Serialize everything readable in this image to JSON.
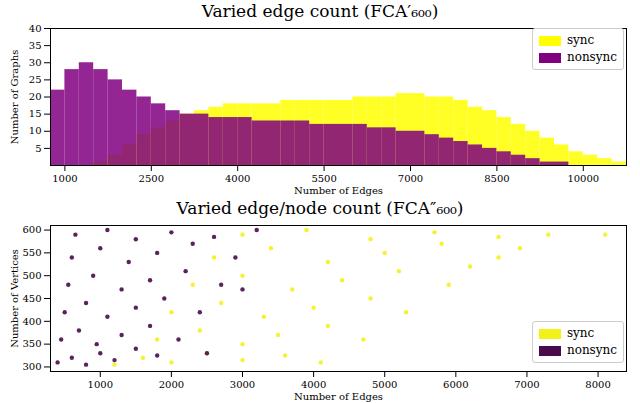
{
  "chart_data": [
    {
      "type": "histogram",
      "title": "Varied edge count (FCA′₆₀₀)",
      "x_label": "Number of Edges",
      "y_label": "Number of Graphs",
      "bins": [
        750,
        1000,
        1250,
        1500,
        1750,
        2000,
        2250,
        2500,
        2750,
        3000,
        3250,
        3500,
        3750,
        4000,
        4250,
        4500,
        4750,
        5000,
        5250,
        5500,
        5750,
        6000,
        6250,
        6500,
        6750,
        7000,
        7250,
        7500,
        7750,
        8000,
        8250,
        8500,
        8750,
        9000,
        9250,
        9500,
        9750,
        10000,
        10250,
        10500,
        10750
      ],
      "series": [
        {
          "name": "sync",
          "color": "#ffff00",
          "values": [
            0,
            0,
            0,
            1,
            3,
            6,
            9,
            11,
            13,
            15,
            16,
            17,
            18,
            18,
            18,
            18,
            19,
            19,
            19,
            19,
            19,
            20,
            20,
            20,
            21,
            21,
            20,
            20,
            19,
            17,
            16,
            14,
            12,
            10,
            8,
            6,
            4,
            3,
            2,
            1
          ]
        },
        {
          "name": "nonsync",
          "color": "#800080",
          "values": [
            22,
            28,
            30,
            28,
            25,
            22,
            20,
            18,
            16,
            15,
            15,
            14,
            14,
            14,
            13,
            13,
            13,
            13,
            12,
            12,
            12,
            12,
            11,
            11,
            10,
            10,
            9,
            8,
            7,
            6,
            5,
            4,
            3,
            2,
            1,
            1,
            0,
            0,
            0,
            0
          ]
        }
      ],
      "xlim": [
        750,
        10750
      ],
      "xticks": [
        1000,
        2500,
        4000,
        5500,
        7000,
        8500,
        10000
      ],
      "ylim": [
        0,
        40
      ],
      "yticks": [
        5,
        10,
        15,
        20,
        25,
        30,
        35,
        40
      ],
      "legend": "upper right",
      "grid": false
    },
    {
      "type": "scatter",
      "title": "Varied edge/node count (FCA″₆₀₀)",
      "x_label": "Number of Edges",
      "y_label": "Number of Vertices",
      "series": [
        {
          "name": "sync",
          "color": "#f2f21a",
          "x": [
            1200,
            1600,
            2000,
            2500,
            3000,
            3600,
            4100,
            1800,
            2400,
            3000,
            3500,
            4200,
            4700,
            2000,
            2700,
            3300,
            4000,
            4800,
            5300,
            2300,
            3000,
            3700,
            4400,
            5200,
            5900,
            2600,
            3400,
            4200,
            5000,
            5800,
            6600,
            3000,
            3900,
            4800,
            5700,
            6600,
            7300,
            8100,
            6900,
            6200
          ],
          "y": [
            305,
            320,
            310,
            330,
            315,
            325,
            310,
            360,
            380,
            350,
            370,
            390,
            360,
            420,
            440,
            410,
            430,
            450,
            420,
            480,
            500,
            470,
            490,
            510,
            480,
            540,
            560,
            530,
            550,
            570,
            540,
            590,
            600,
            580,
            595,
            585,
            590,
            590,
            560,
            520
          ]
        },
        {
          "name": "nonsync",
          "color": "#4b0a4b",
          "x": [
            400,
            600,
            800,
            1000,
            1200,
            1500,
            1800,
            450,
            700,
            950,
            1300,
            1700,
            2100,
            500,
            800,
            1100,
            1500,
            1900,
            2400,
            550,
            900,
            1300,
            1700,
            2200,
            2700,
            600,
            1000,
            1400,
            1800,
            2300,
            2900,
            650,
            1100,
            1500,
            2000,
            2600,
            3200,
            3000,
            2500
          ],
          "y": [
            310,
            320,
            305,
            330,
            315,
            340,
            325,
            360,
            380,
            350,
            370,
            390,
            360,
            420,
            440,
            410,
            430,
            450,
            420,
            480,
            500,
            470,
            490,
            510,
            480,
            540,
            560,
            530,
            550,
            570,
            540,
            590,
            600,
            580,
            595,
            585,
            600,
            470,
            330
          ]
        }
      ],
      "xlim": [
        300,
        8400
      ],
      "xticks": [
        1000,
        2000,
        3000,
        4000,
        5000,
        6000,
        7000,
        8000
      ],
      "ylim": [
        290,
        610
      ],
      "yticks": [
        300,
        350,
        400,
        450,
        500,
        550,
        600
      ],
      "legend": "lower right",
      "grid": false
    }
  ]
}
